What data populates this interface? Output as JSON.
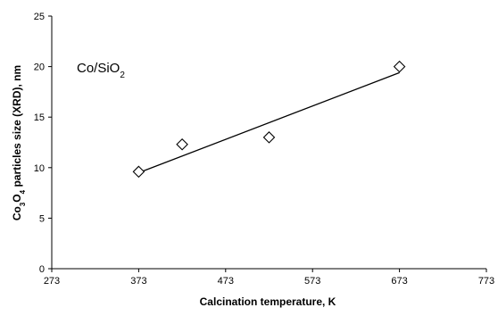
{
  "chart_data": {
    "type": "scatter",
    "title": "",
    "annotation": {
      "main": "Co/SiO",
      "sub": "2"
    },
    "xlabel": "Calcination temperature, K",
    "ylabel": {
      "prefix": "Co",
      "sub1": "3",
      "mid": "O",
      "sub2": "4",
      "suffix": " particles size (XRD), nm"
    },
    "xlim": [
      273,
      773
    ],
    "ylim": [
      0,
      25
    ],
    "xticks": [
      273,
      373,
      473,
      573,
      673,
      773
    ],
    "yticks": [
      0,
      5,
      10,
      15,
      20,
      25
    ],
    "marker": "diamond-open",
    "series": [
      {
        "x": [
          373,
          423,
          523,
          673
        ],
        "y": [
          9.6,
          12.3,
          13.0,
          20.0
        ]
      }
    ],
    "trendline": {
      "type": "linear",
      "x": [
        373,
        673
      ],
      "y": [
        9.5,
        19.4
      ]
    },
    "grid": false,
    "legend": "none"
  }
}
